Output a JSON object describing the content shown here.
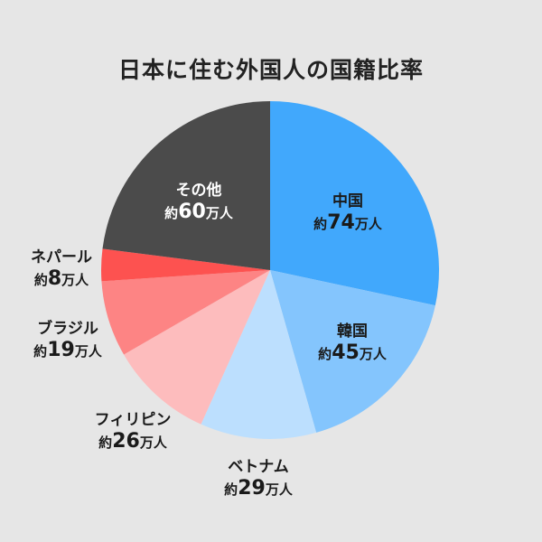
{
  "chart_data": {
    "type": "pie",
    "title": "日本に住む外国人の国籍比率",
    "value_prefix": "約",
    "value_unit": "万人",
    "start_angle": "12 o'clock",
    "direction": "clockwise",
    "slices": [
      {
        "label": "中国",
        "value": 74,
        "color": "#41a8fc",
        "text_color": "#1a1a1a",
        "label_position": "inside"
      },
      {
        "label": "韓国",
        "value": 45,
        "color": "#84c5fd",
        "text_color": "#1a1a1a",
        "label_position": "inside"
      },
      {
        "label": "ベトナム",
        "value": 29,
        "color": "#bcdffe",
        "text_color": "#1a1a1a",
        "label_position": "outside"
      },
      {
        "label": "フィリピン",
        "value": 26,
        "color": "#fdbcbd",
        "text_color": "#1a1a1a",
        "label_position": "outside"
      },
      {
        "label": "ブラジル",
        "value": 19,
        "color": "#fd8484",
        "text_color": "#1a1a1a",
        "label_position": "outside"
      },
      {
        "label": "ネパール",
        "value": 8,
        "color": "#fd5250",
        "text_color": "#1a1a1a",
        "label_position": "outside"
      },
      {
        "label": "その他",
        "value": 60,
        "color": "#4b4b4b",
        "text_color": "#ffffff",
        "label_position": "inside"
      }
    ]
  }
}
